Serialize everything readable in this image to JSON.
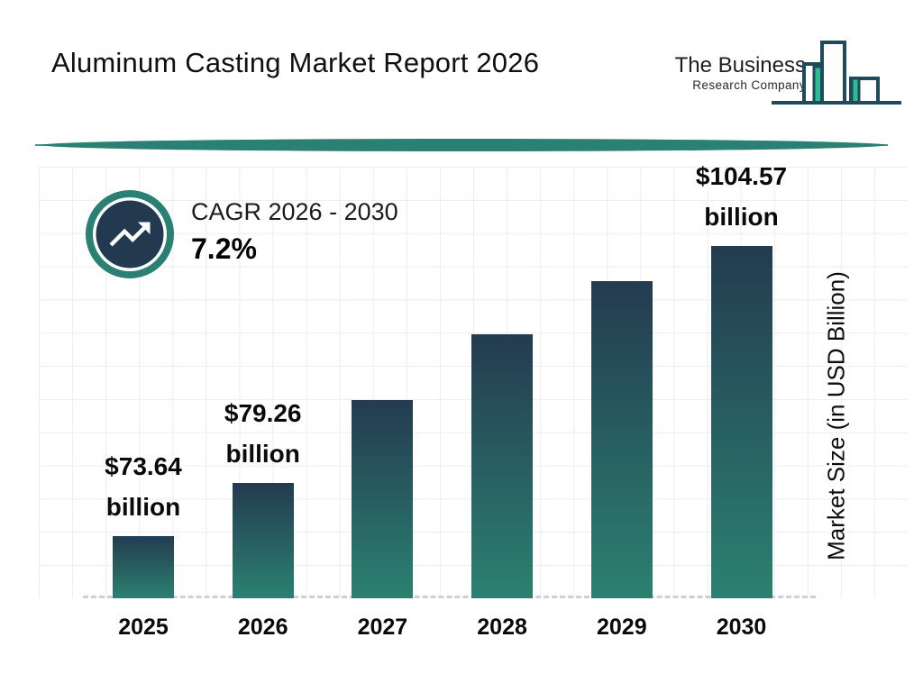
{
  "page": {
    "title": "Aluminum Casting Market Report 2026",
    "background": "#ffffff"
  },
  "logo": {
    "name_line1": "The Business",
    "name_line2": "Research Company",
    "outline_color": "#20495c",
    "accent_color": "#2dbd92"
  },
  "cagr": {
    "label": "CAGR 2026 - 2030",
    "value": "7.2%",
    "ring_color": "#2a8173",
    "inner_circle_color": "#223950"
  },
  "divider_color": "#2a8173",
  "chart_data": {
    "type": "bar",
    "title": "Aluminum Casting Market Report 2026",
    "categories": [
      "2025",
      "2026",
      "2027",
      "2028",
      "2029",
      "2030"
    ],
    "values": [
      73.64,
      79.26,
      88.1,
      95.1,
      100.8,
      104.57
    ],
    "value_labels": [
      [
        "$73.64",
        "billion"
      ],
      [
        "$79.26",
        "billion"
      ],
      null,
      null,
      null,
      [
        "$104.57",
        "billion"
      ]
    ],
    "xlabel": "",
    "ylabel": "Market Size (in USD Billion)",
    "ylim": [
      67,
      113
    ],
    "grid": true,
    "legend": false,
    "baseline_style": "dashed",
    "bar_gradient_top": "#243b50",
    "bar_gradient_bottom": "#2b8171"
  }
}
